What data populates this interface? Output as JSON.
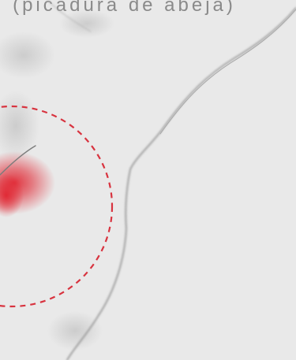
{
  "caption": "(picadura de abeja)",
  "colors": {
    "background": "#e9e9e9",
    "sketch_line": "#8c8c8c",
    "highlight_circle": "#d8333f",
    "bite_redness": "#e0212d",
    "caption_text": "#8a8a8a"
  }
}
